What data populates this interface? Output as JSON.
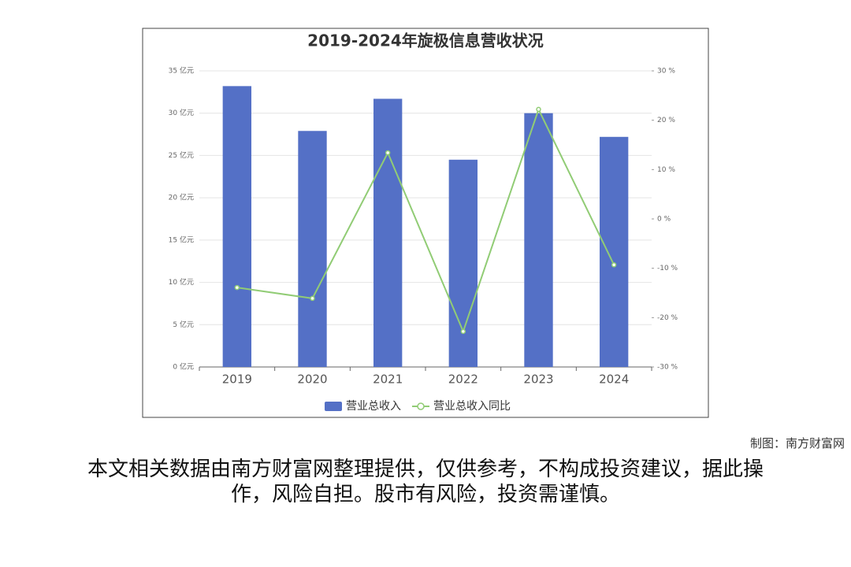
{
  "chart_data": {
    "type": "bar",
    "title": "2019-2024年旋极信息营收状况",
    "categories": [
      "2019",
      "2020",
      "2021",
      "2022",
      "2023",
      "2024"
    ],
    "series": [
      {
        "name": "营业总收入",
        "color": "#5470c6",
        "type": "bar",
        "values": [
          33.2,
          27.9,
          31.7,
          24.5,
          30.0,
          27.2
        ]
      },
      {
        "name": "营业总收入同比",
        "color": "#91cc75",
        "type": "line",
        "axis": "y2",
        "values": [
          -13.9,
          -16.1,
          13.4,
          -22.8,
          22.2,
          -9.3
        ]
      }
    ],
    "ylim": [
      0,
      35
    ],
    "yticks": [
      {
        "value": 0,
        "label": "0 亿元"
      },
      {
        "value": 5,
        "label": "5 亿元"
      },
      {
        "value": 10,
        "label": "10 亿元"
      },
      {
        "value": 15,
        "label": "15 亿元"
      },
      {
        "value": 20,
        "label": "20 亿元"
      },
      {
        "value": 25,
        "label": "25 亿元"
      },
      {
        "value": 30,
        "label": "30 亿元"
      },
      {
        "value": 35,
        "label": "35 亿元"
      }
    ],
    "y2lim": [
      -30,
      30
    ],
    "y2ticks": [
      {
        "value": -30,
        "label": "-30 %"
      },
      {
        "value": -20,
        "label": "-20 %"
      },
      {
        "value": -10,
        "label": "-10 %"
      },
      {
        "value": 0,
        "label": "0 %"
      },
      {
        "value": 10,
        "label": "10 %"
      },
      {
        "value": 20,
        "label": "20 %"
      },
      {
        "value": 30,
        "label": "30 %"
      }
    ],
    "grid": true,
    "legend": "bottom"
  },
  "footer": {
    "credit": "制图：南方财富网",
    "disclaimer": "本文相关数据由南方财富网整理提供，仅供参考，不构成投资建议，据此操作，风险自担。股市有风险，投资需谨慎。"
  }
}
